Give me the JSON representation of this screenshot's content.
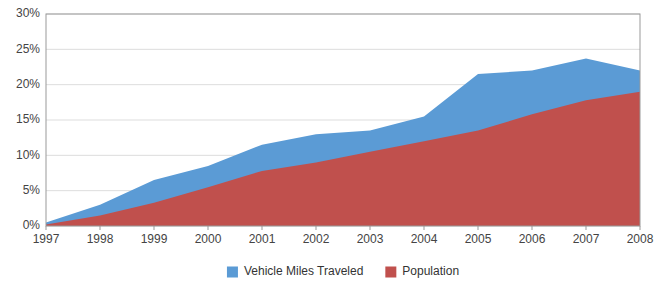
{
  "chart_data": {
    "type": "area",
    "x": [
      1997,
      1998,
      1999,
      2000,
      2001,
      2002,
      2003,
      2004,
      2005,
      2006,
      2007,
      2008
    ],
    "series": [
      {
        "name": "Vehicle Miles Traveled",
        "color": "#5B9BD5",
        "values": [
          0.005,
          0.03,
          0.065,
          0.085,
          0.115,
          0.13,
          0.135,
          0.155,
          0.215,
          0.22,
          0.237,
          0.22
        ]
      },
      {
        "name": "Population",
        "color": "#C0504D",
        "values": [
          0.002,
          0.015,
          0.033,
          0.055,
          0.078,
          0.09,
          0.105,
          0.12,
          0.135,
          0.158,
          0.178,
          0.19
        ]
      }
    ],
    "xlim": [
      1997,
      2008
    ],
    "xticks": [
      1997,
      1998,
      1999,
      2000,
      2001,
      2002,
      2003,
      2004,
      2005,
      2006,
      2007,
      2008
    ],
    "ylim": [
      0.0,
      0.3
    ],
    "yticks": [
      {
        "value": 0.0,
        "label": "0%"
      },
      {
        "value": 0.05,
        "label": "5%"
      },
      {
        "value": 0.1,
        "label": "10%"
      },
      {
        "value": 0.15,
        "label": "15%"
      },
      {
        "value": 0.2,
        "label": "20%"
      },
      {
        "value": 0.25,
        "label": "25%"
      },
      {
        "value": 0.3,
        "label": "30%"
      }
    ],
    "grid": true,
    "legend": "bottom"
  }
}
